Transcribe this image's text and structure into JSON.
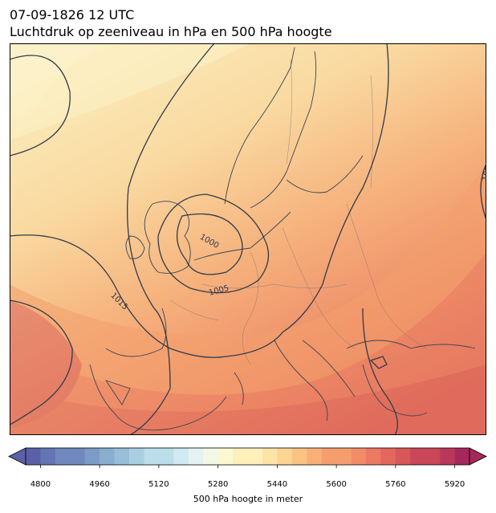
{
  "header": {
    "datetime": "07-09-1826 12 UTC",
    "subtitle": "Luchtdruk op zeeniveau in hPa en 500 hPa hoogte"
  },
  "map": {
    "isobar_labels": [
      "1000",
      "1005",
      "1015",
      "1015"
    ],
    "colors": {
      "low": "#f6eec0",
      "mid": "#f4a468",
      "high": "#d95550",
      "contour": "#2f3b4a",
      "border": "#555555"
    }
  },
  "colorbar": {
    "label": "500 hPa hoogte in meter",
    "ticks": [
      "4800",
      "4960",
      "5120",
      "5280",
      "5440",
      "5600",
      "5760",
      "5920"
    ],
    "min": 4760,
    "max": 5960,
    "step": 40,
    "palette": [
      "#5a60a8",
      "#6574b2",
      "#7088bc",
      "#7c9bc6",
      "#89aed0",
      "#98bfd9",
      "#a9cfe2",
      "#bcdeea",
      "#d1eaf1",
      "#e4f3f2",
      "#f3f8e6",
      "#fbf7d1",
      "#fdf0bb",
      "#fde4a6",
      "#fcd493",
      "#fbc383",
      "#f9b077",
      "#f69d6e",
      "#f28b67",
      "#ec7962",
      "#e4675d",
      "#d85758",
      "#c94757",
      "#b93758",
      "#a5285a"
    ]
  }
}
